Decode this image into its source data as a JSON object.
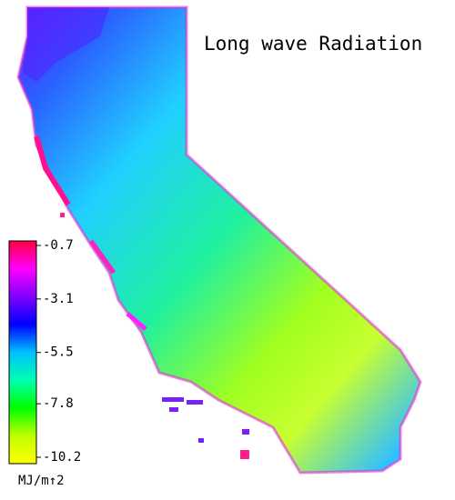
{
  "title": "Long wave Radiation",
  "colorbar": {
    "ticks": [
      -0.7,
      -3.1,
      -5.5,
      -7.8,
      -10.2
    ],
    "unit": "MJ/m↑2",
    "colors": [
      "#ff0040",
      "#ff00ff",
      "#8000ff",
      "#0000ff",
      "#00c0ff",
      "#00ffb0",
      "#00ff00",
      "#c0ff00",
      "#ffff00"
    ]
  }
}
